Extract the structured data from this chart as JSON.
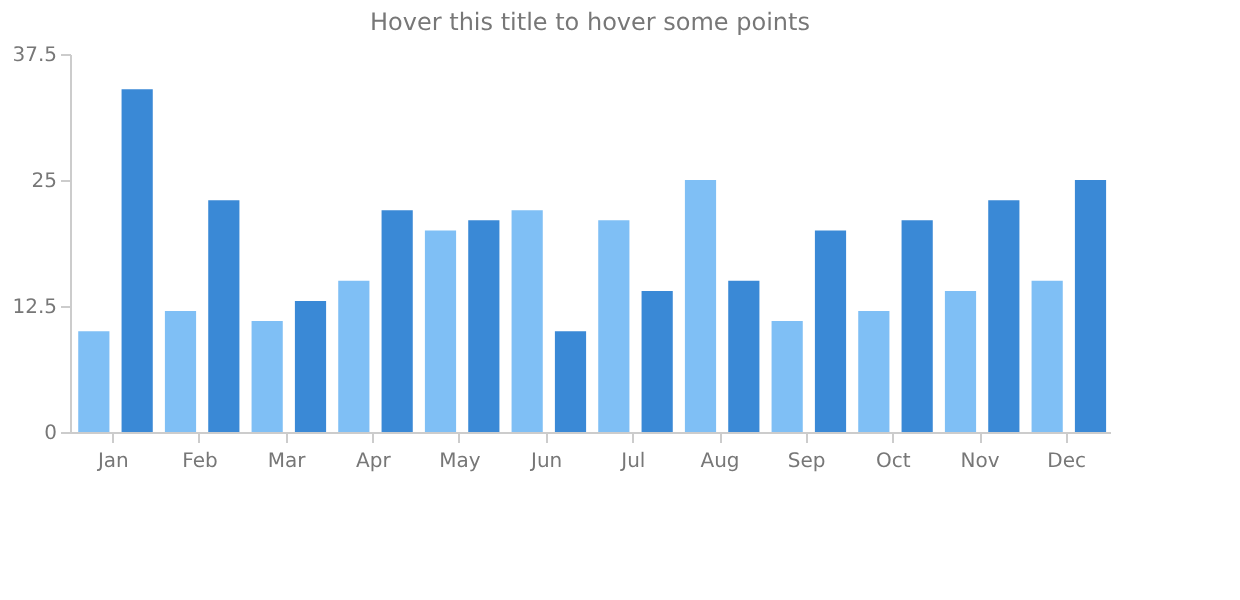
{
  "chart_data": {
    "type": "bar",
    "title": "Hover this title to hover some points",
    "categories": [
      "Jan",
      "Feb",
      "Mar",
      "Apr",
      "May",
      "Jun",
      "Jul",
      "Aug",
      "Sep",
      "Oct",
      "Nov",
      "Dec"
    ],
    "series": [
      {
        "color": "#7fbff5",
        "values": [
          10,
          12,
          11,
          15,
          20,
          22,
          21,
          25,
          11,
          12,
          14,
          15
        ]
      },
      {
        "color": "#3a89d6",
        "values": [
          34,
          23,
          13,
          22,
          21,
          10,
          14,
          15,
          20,
          21,
          23,
          25
        ]
      }
    ],
    "ylim": [
      0,
      37.5
    ],
    "yticks": [
      0,
      12.5,
      25,
      37.5
    ],
    "grid": false,
    "legend": false
  }
}
